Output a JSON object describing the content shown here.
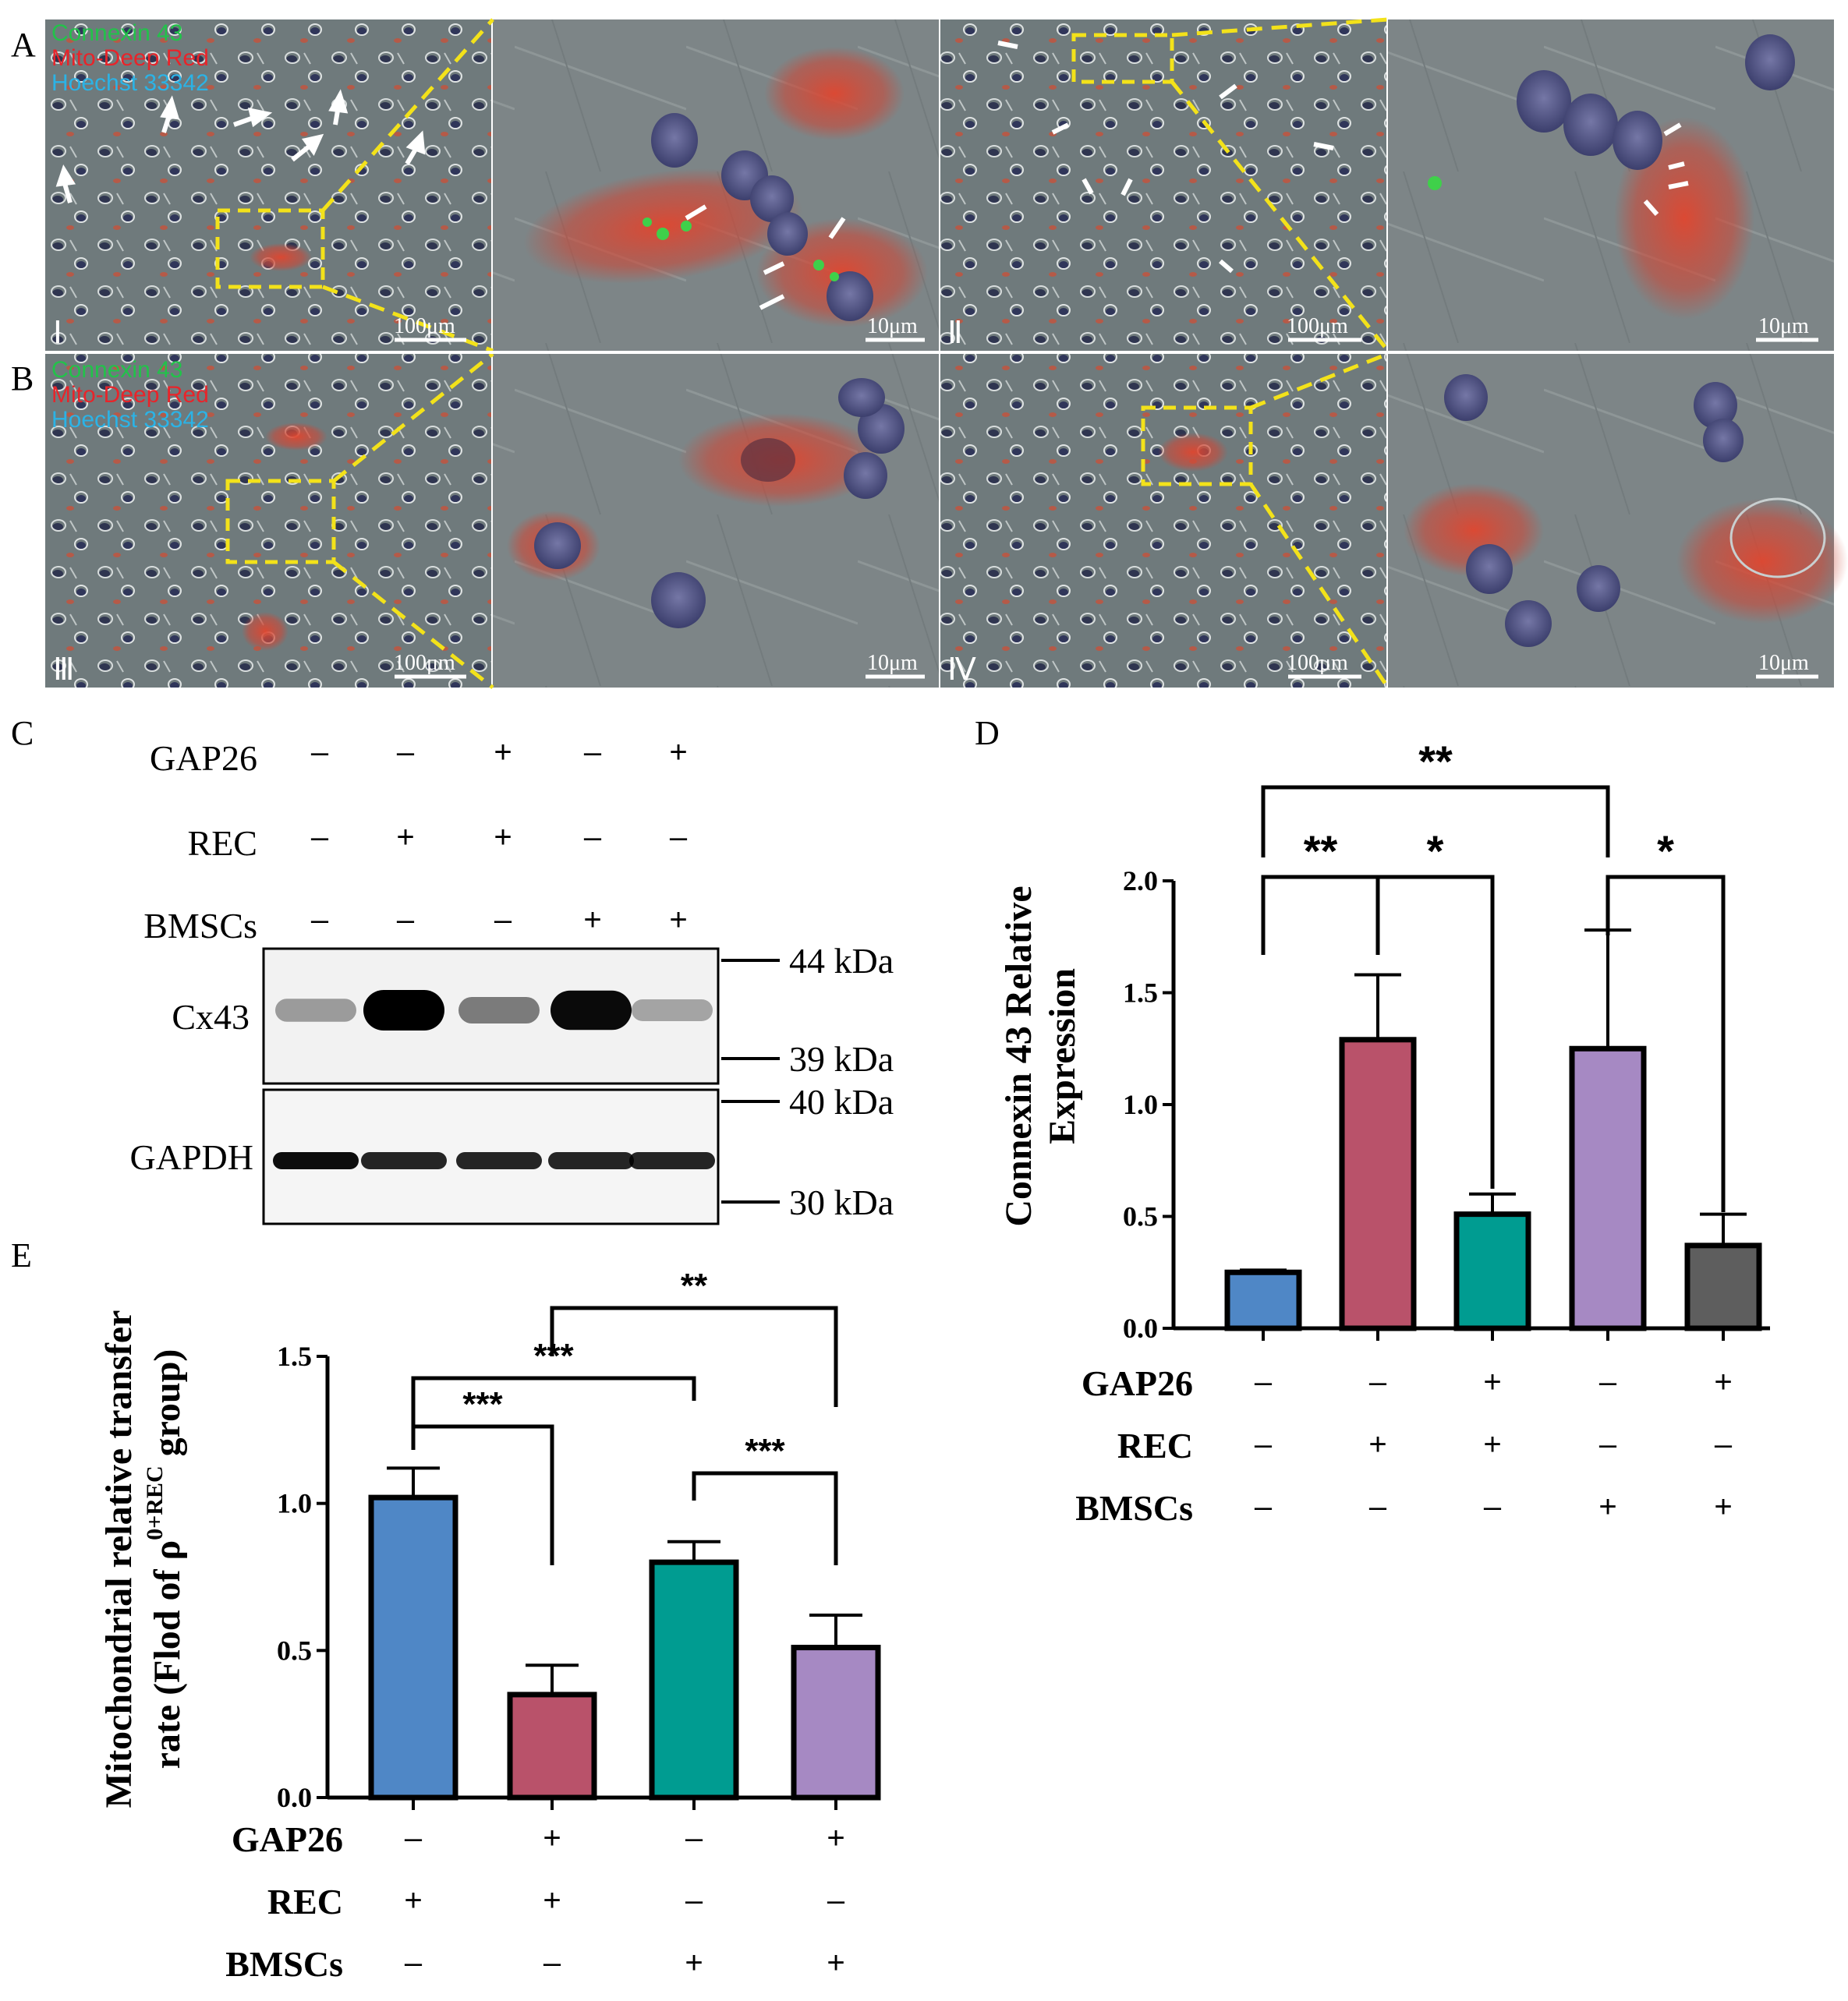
{
  "panels": {
    "A": "A",
    "B": "B",
    "C": "C",
    "D": "D",
    "E": "E"
  },
  "micrographs": {
    "legend": [
      {
        "text": "Connexin 43",
        "color": "#22c24a"
      },
      {
        "text": "Mito-Deep Red",
        "color": "#e8242a"
      },
      {
        "text": "Hoechst 33342",
        "color": "#2bb3e6"
      }
    ],
    "scale_low": "100μm",
    "scale_high": "10μm",
    "roman": [
      "Ⅰ",
      "Ⅱ",
      "Ⅲ",
      "Ⅳ"
    ]
  },
  "western": {
    "conditions": [
      {
        "label": "GAP26",
        "signs": [
          "–",
          "–",
          "+",
          "–",
          "+"
        ]
      },
      {
        "label": "REC",
        "signs": [
          "–",
          "+",
          "+",
          "–",
          "–"
        ]
      },
      {
        "label": "BMSCs",
        "signs": [
          "–",
          "–",
          "–",
          "+",
          "+"
        ]
      }
    ],
    "blots": [
      {
        "label": "Cx43",
        "intensity": [
          0.25,
          1.0,
          0.4,
          0.95,
          0.2
        ]
      },
      {
        "label": "GAPDH",
        "intensity": [
          0.95,
          0.85,
          0.85,
          0.85,
          0.85
        ]
      }
    ],
    "markers": [
      "44 kDa",
      "39 kDa",
      "40 kDa",
      "30 kDa"
    ]
  },
  "chart_data": [
    {
      "id": "D",
      "type": "bar",
      "categories": [
        "1",
        "2",
        "3",
        "4",
        "5"
      ],
      "values": [
        0.25,
        1.29,
        0.51,
        1.25,
        0.37
      ],
      "errors": [
        0.01,
        0.29,
        0.09,
        0.53,
        0.14
      ],
      "colors": [
        "#4f87c6",
        "#b9526a",
        "#009c91",
        "#a689c3",
        "#5e5e5e"
      ],
      "ylabel_line1": "Connexin 43 Relative",
      "ylabel_line2": "Expression",
      "ylim": [
        0,
        2.0
      ],
      "yticks": [
        "0.0",
        "0.5",
        "1.0",
        "1.5",
        "2.0"
      ],
      "conditions": [
        {
          "label": "GAP26",
          "signs": [
            "–",
            "–",
            "+",
            "–",
            "+"
          ]
        },
        {
          "label": "REC",
          "signs": [
            "–",
            "+",
            "+",
            "–",
            "–"
          ]
        },
        {
          "label": "BMSCs",
          "signs": [
            "–",
            "–",
            "–",
            "+",
            "+"
          ]
        }
      ],
      "significance": [
        {
          "from": 0,
          "to": 3,
          "label": "**"
        },
        {
          "from": 0,
          "to": 1,
          "label": "**"
        },
        {
          "from": 1,
          "to": 2,
          "label": "*"
        },
        {
          "from": 3,
          "to": 4,
          "label": "*"
        }
      ]
    },
    {
      "id": "E",
      "type": "bar",
      "categories": [
        "1",
        "2",
        "3",
        "4"
      ],
      "values": [
        1.02,
        0.35,
        0.8,
        0.51
      ],
      "errors": [
        0.1,
        0.1,
        0.07,
        0.11
      ],
      "colors": [
        "#4f87c6",
        "#b9526a",
        "#009c91",
        "#a689c3"
      ],
      "ylabel_line1": "Mitochondrial relative  transfer",
      "ylabel_line2_pre": "rate (Flod of ρ",
      "ylabel_line2_sup": "0+REC",
      "ylabel_line2_post": " group)",
      "ylim": [
        0,
        1.5
      ],
      "yticks": [
        "0.0",
        "0.5",
        "1.0",
        "1.5"
      ],
      "conditions": [
        {
          "label": "GAP26",
          "signs": [
            "–",
            "+",
            "–",
            "+"
          ]
        },
        {
          "label": "REC",
          "signs": [
            "+",
            "+",
            "–",
            "–"
          ]
        },
        {
          "label": "BMSCs",
          "signs": [
            "–",
            "–",
            "+",
            "+"
          ]
        }
      ],
      "significance": [
        {
          "from": 1,
          "to": 3,
          "label": "**"
        },
        {
          "from": 0,
          "to": 2,
          "label": "***"
        },
        {
          "from": 0,
          "to": 1,
          "label": "***"
        },
        {
          "from": 2,
          "to": 3,
          "label": "***"
        }
      ]
    }
  ]
}
